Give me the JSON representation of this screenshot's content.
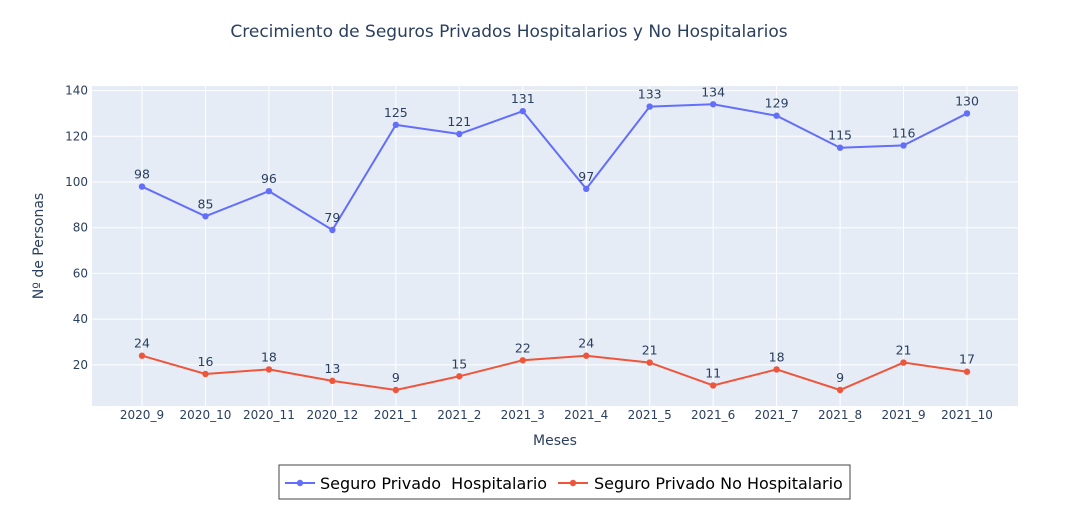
{
  "chart_data": {
    "type": "line",
    "title": "Crecimiento de Seguros Privados Hospitalarios y No Hospitalarios",
    "xlabel": "Meses",
    "ylabel": "Nº de Personas",
    "categories": [
      "2020_9",
      "2020_10",
      "2020_11",
      "2020_12",
      "2021_1",
      "2021_2",
      "2021_3",
      "2021_4",
      "2021_5",
      "2021_6",
      "2021_7",
      "2021_8",
      "2021_9",
      "2021_10"
    ],
    "yticks": [
      20,
      40,
      60,
      80,
      100,
      120,
      140
    ],
    "ylim": [
      2,
      142
    ],
    "grid": true,
    "legend_position": "bottom-center",
    "series": [
      {
        "name": "Seguro Privado  Hospitalario",
        "color": "#636efa",
        "values": [
          98,
          85,
          96,
          79,
          125,
          121,
          131,
          97,
          133,
          134,
          129,
          115,
          116,
          130
        ]
      },
      {
        "name": "Seguro Privado No Hospitalario",
        "color": "#ef553b",
        "values": [
          24,
          16,
          18,
          13,
          9,
          15,
          22,
          24,
          21,
          11,
          18,
          9,
          21,
          17
        ]
      }
    ]
  }
}
